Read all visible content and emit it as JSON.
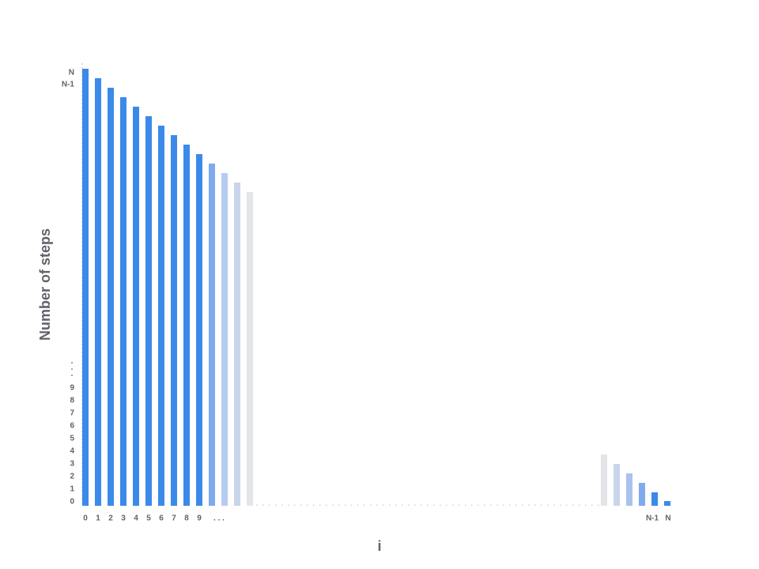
{
  "y_axis": {
    "title": "Number of steps",
    "ticks": [
      "N",
      "N-1",
      "9",
      "8",
      "7",
      "6",
      "5",
      "4",
      "3",
      "2",
      "1",
      "0"
    ]
  },
  "x_axis": {
    "title": "i",
    "ticks": [
      "0",
      "1",
      "2",
      "3",
      "4",
      "5",
      "6",
      "7",
      "8",
      "9",
      ". . .",
      "N-1",
      "N"
    ]
  }
}
